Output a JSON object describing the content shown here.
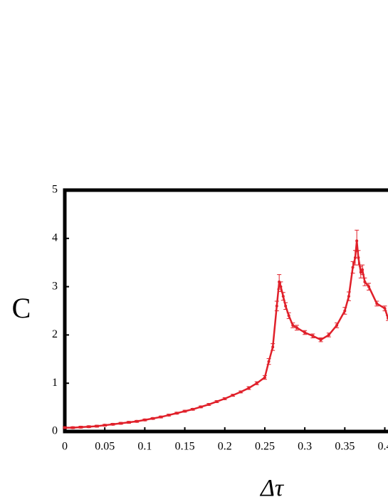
{
  "chart_data": {
    "type": "line",
    "x_label": "Δτ",
    "y_label": "C",
    "x": [
      0,
      0.01,
      0.02,
      0.03,
      0.04,
      0.05,
      0.06,
      0.07,
      0.08,
      0.09,
      0.1,
      0.11,
      0.12,
      0.13,
      0.14,
      0.15,
      0.16,
      0.17,
      0.18,
      0.19,
      0.2,
      0.21,
      0.22,
      0.23,
      0.24,
      0.25,
      0.255,
      0.26,
      0.265,
      0.268,
      0.27,
      0.273,
      0.276,
      0.28,
      0.285,
      0.29,
      0.3,
      0.31,
      0.32,
      0.33,
      0.34,
      0.35,
      0.355,
      0.36,
      0.363,
      0.365,
      0.367,
      0.37,
      0.372,
      0.375,
      0.38,
      0.39,
      0.4,
      0.404
    ],
    "series": [
      {
        "name": "C",
        "color": "#e0202a",
        "values": [
          0.08,
          0.08,
          0.09,
          0.1,
          0.11,
          0.13,
          0.15,
          0.17,
          0.19,
          0.21,
          0.24,
          0.27,
          0.3,
          0.34,
          0.38,
          0.42,
          0.46,
          0.51,
          0.56,
          0.62,
          0.68,
          0.75,
          0.82,
          0.9,
          1.0,
          1.12,
          1.45,
          1.75,
          2.6,
          3.1,
          3.0,
          2.8,
          2.6,
          2.4,
          2.2,
          2.15,
          2.05,
          1.98,
          1.9,
          2.0,
          2.2,
          2.5,
          2.8,
          3.4,
          3.6,
          3.95,
          3.6,
          3.3,
          3.35,
          3.1,
          3.0,
          2.65,
          2.55,
          2.35
        ],
        "errors": [
          0.02,
          0.02,
          0.02,
          0.02,
          0.02,
          0.02,
          0.02,
          0.02,
          0.02,
          0.02,
          0.02,
          0.02,
          0.02,
          0.02,
          0.02,
          0.02,
          0.02,
          0.02,
          0.02,
          0.02,
          0.02,
          0.02,
          0.02,
          0.03,
          0.03,
          0.04,
          0.06,
          0.07,
          0.1,
          0.15,
          0.1,
          0.08,
          0.07,
          0.06,
          0.05,
          0.05,
          0.04,
          0.04,
          0.04,
          0.04,
          0.05,
          0.07,
          0.09,
          0.12,
          0.15,
          0.22,
          0.15,
          0.12,
          0.1,
          0.08,
          0.07,
          0.05,
          0.05,
          0.05
        ]
      }
    ],
    "xlim": [
      0,
      0.404
    ],
    "ylim": [
      0,
      5
    ],
    "xticks": [
      0,
      0.05,
      0.1,
      0.15,
      0.2,
      0.25,
      0.3,
      0.35,
      0.4
    ],
    "yticks": [
      0,
      1,
      2,
      3,
      4,
      5
    ]
  }
}
